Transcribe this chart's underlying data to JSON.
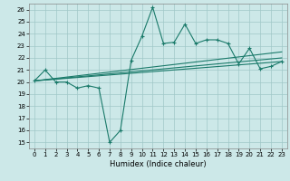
{
  "xlabel": "Humidex (Indice chaleur)",
  "bg_color": "#cce8e8",
  "grid_color": "#a0c8c8",
  "line_color": "#1a7a6a",
  "xlim": [
    -0.5,
    23.5
  ],
  "ylim": [
    14.5,
    26.5
  ],
  "yticks": [
    15,
    16,
    17,
    18,
    19,
    20,
    21,
    22,
    23,
    24,
    25,
    26
  ],
  "xticks": [
    0,
    1,
    2,
    3,
    4,
    5,
    6,
    7,
    8,
    9,
    10,
    11,
    12,
    13,
    14,
    15,
    16,
    17,
    18,
    19,
    20,
    21,
    22,
    23
  ],
  "series_main": [
    [
      0,
      20.1
    ],
    [
      1,
      21.0
    ],
    [
      2,
      20.0
    ],
    [
      3,
      20.0
    ],
    [
      4,
      19.5
    ],
    [
      5,
      19.7
    ],
    [
      6,
      19.5
    ],
    [
      7,
      15.0
    ],
    [
      8,
      16.0
    ],
    [
      9,
      21.8
    ],
    [
      10,
      23.8
    ],
    [
      11,
      26.2
    ],
    [
      12,
      23.2
    ],
    [
      13,
      23.3
    ],
    [
      14,
      24.8
    ],
    [
      15,
      23.2
    ],
    [
      16,
      23.5
    ],
    [
      17,
      23.5
    ],
    [
      18,
      23.2
    ],
    [
      19,
      21.5
    ],
    [
      20,
      22.8
    ],
    [
      21,
      21.1
    ],
    [
      22,
      21.3
    ],
    [
      23,
      21.7
    ]
  ],
  "series_line1": [
    [
      0,
      20.1
    ],
    [
      23,
      21.7
    ]
  ],
  "series_line2": [
    [
      0,
      20.1
    ],
    [
      23,
      22.0
    ]
  ],
  "series_line3": [
    [
      0,
      20.1
    ],
    [
      23,
      22.5
    ]
  ]
}
